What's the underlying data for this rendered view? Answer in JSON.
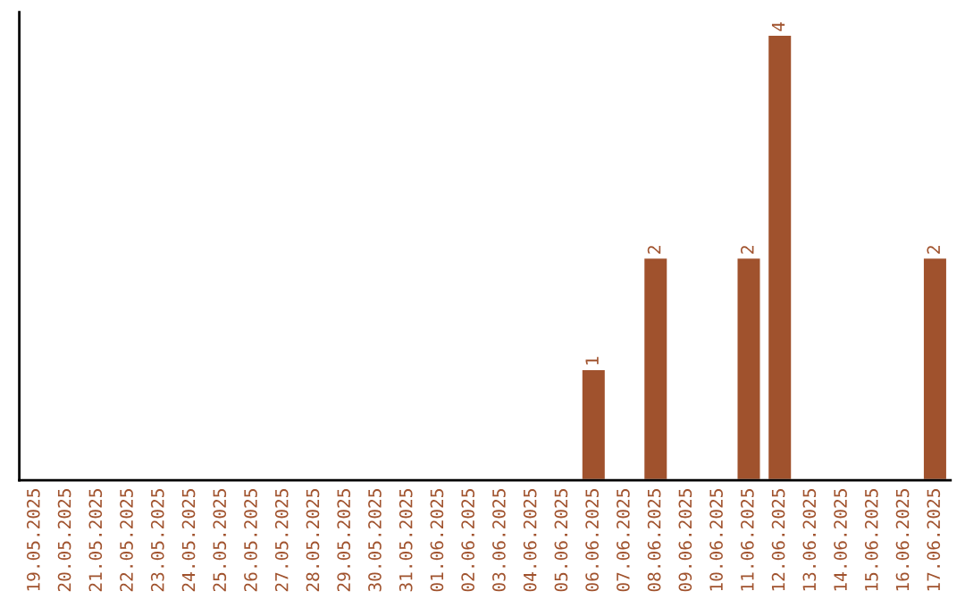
{
  "chart_data": {
    "type": "bar",
    "categories": [
      "19.05.2025",
      "20.05.2025",
      "21.05.2025",
      "22.05.2025",
      "23.05.2025",
      "24.05.2025",
      "25.05.2025",
      "26.05.2025",
      "27.05.2025",
      "28.05.2025",
      "29.05.2025",
      "30.05.2025",
      "31.05.2025",
      "01.06.2025",
      "02.06.2025",
      "03.06.2025",
      "04.06.2025",
      "05.06.2025",
      "06.06.2025",
      "07.06.2025",
      "08.06.2025",
      "09.06.2025",
      "10.06.2025",
      "11.06.2025",
      "12.06.2025",
      "13.06.2025",
      "14.06.2025",
      "15.06.2025",
      "16.06.2025",
      "17.06.2025"
    ],
    "values": [
      null,
      null,
      null,
      null,
      null,
      null,
      null,
      null,
      null,
      null,
      null,
      null,
      null,
      null,
      null,
      null,
      null,
      null,
      1,
      null,
      2,
      null,
      null,
      2,
      4,
      null,
      null,
      null,
      null,
      2
    ],
    "value_labels": [
      null,
      null,
      null,
      null,
      null,
      null,
      null,
      null,
      null,
      null,
      null,
      null,
      null,
      null,
      null,
      null,
      null,
      null,
      "1",
      null,
      "2",
      null,
      null,
      "2",
      "4",
      null,
      null,
      null,
      null,
      "2"
    ],
    "color": "#a0522d",
    "grid": false,
    "tick_labels": "x"
  }
}
